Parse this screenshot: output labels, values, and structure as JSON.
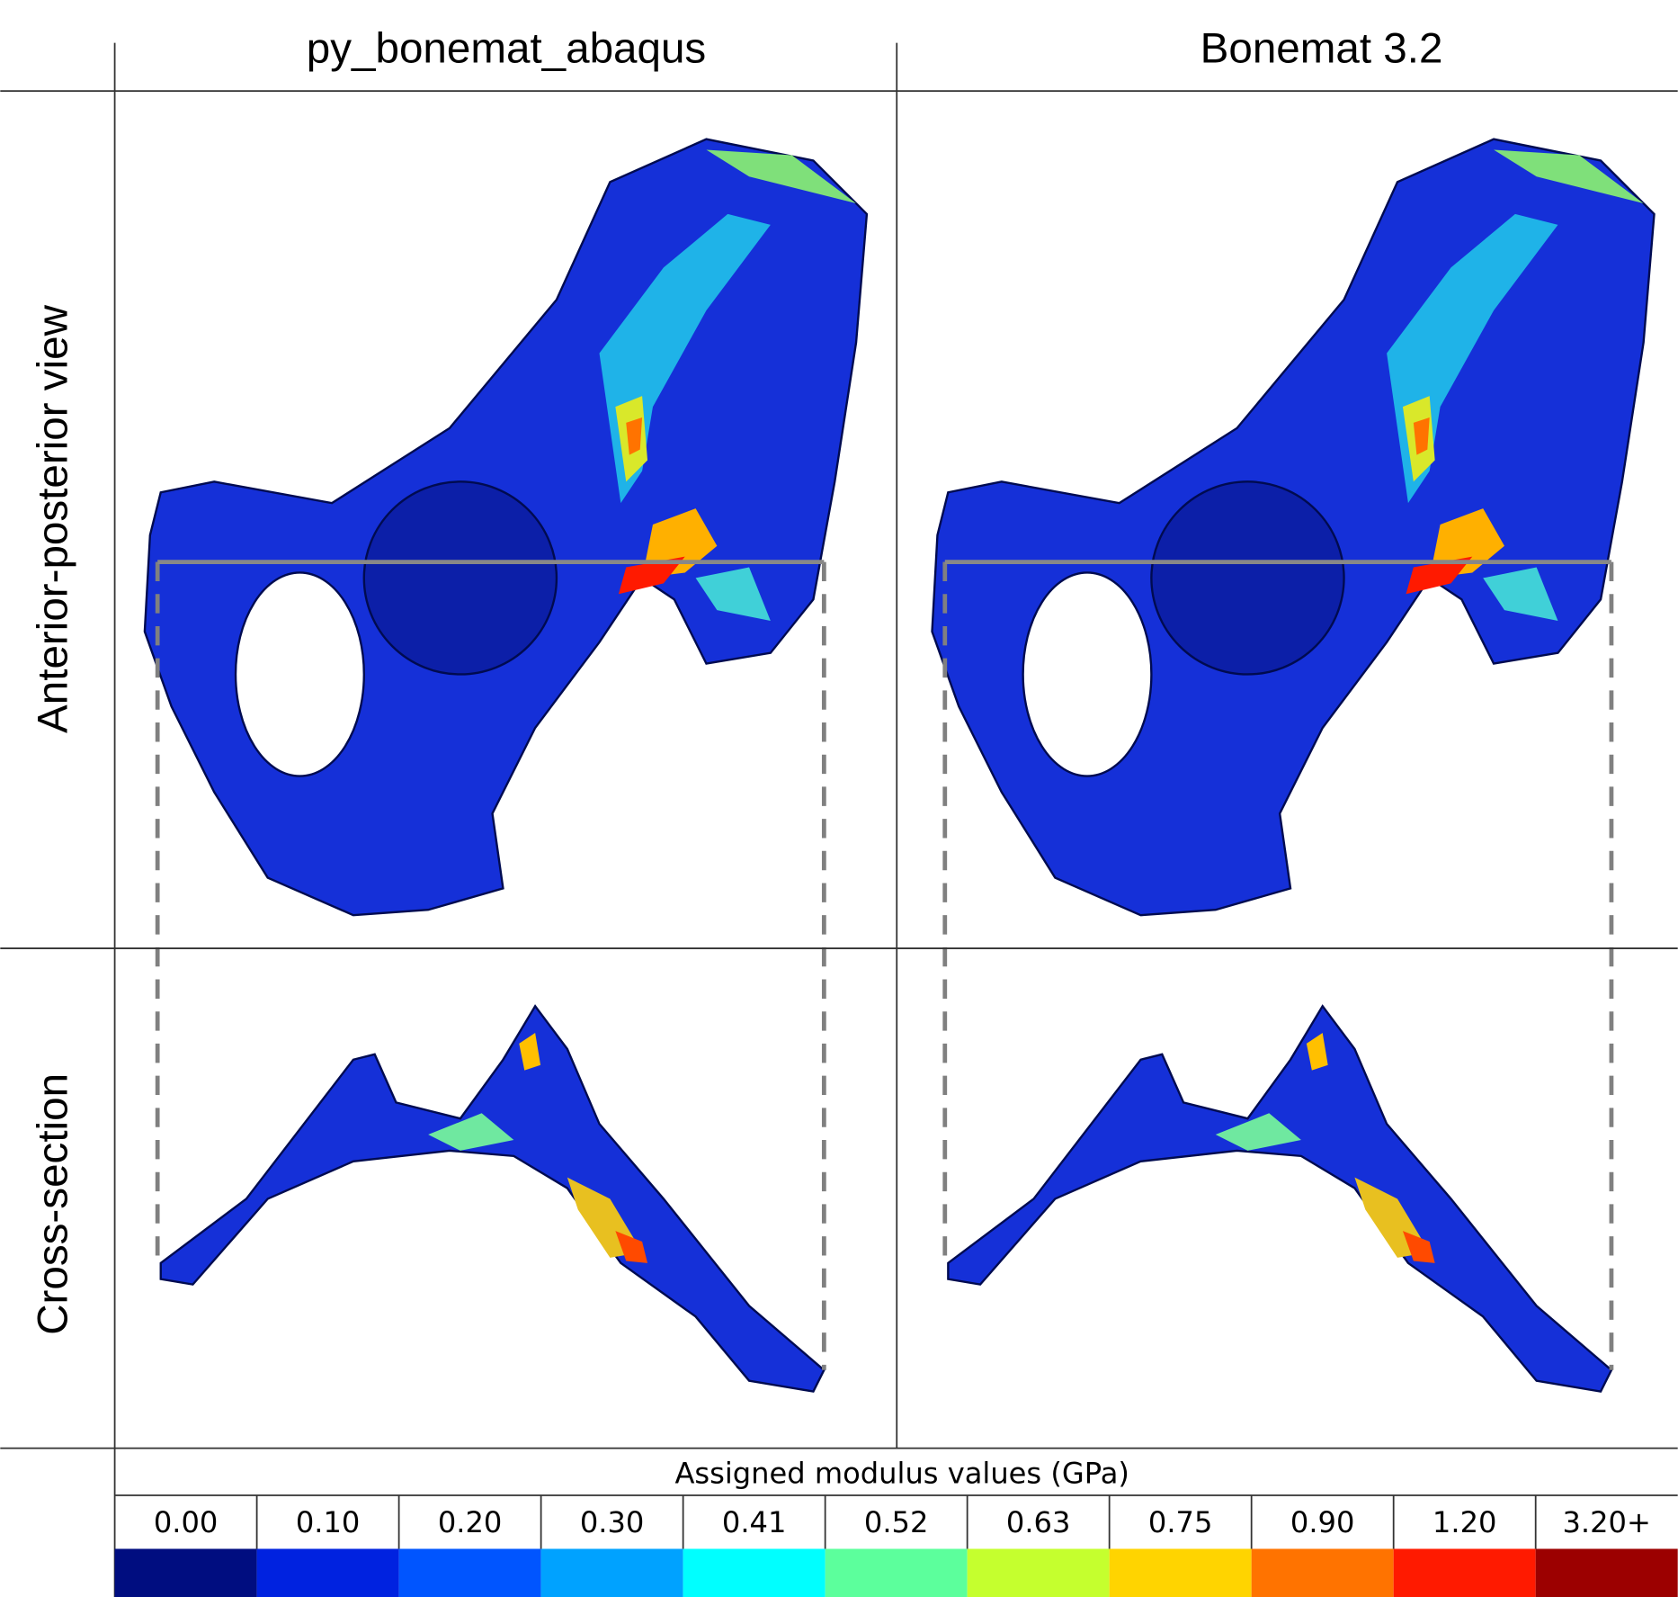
{
  "columns": [
    "py_bonemat_abaqus",
    "Bonemat 3.2"
  ],
  "rows": [
    "Anterior-posterior view",
    "Cross-section"
  ],
  "legend": {
    "title": "Assigned modulus values (GPa)",
    "labels": [
      "0.00",
      "0.10",
      "0.20",
      "0.30",
      "0.41",
      "0.52",
      "0.63",
      "0.75",
      "0.90",
      "1.20",
      "3.20+"
    ],
    "colors": [
      "#000d80",
      "#0022e0",
      "#0055ff",
      "#00a2ff",
      "#00ffff",
      "#5cff9c",
      "#c5ff2e",
      "#ffd400",
      "#ff7300",
      "#ff1a00",
      "#9c0000"
    ]
  }
}
